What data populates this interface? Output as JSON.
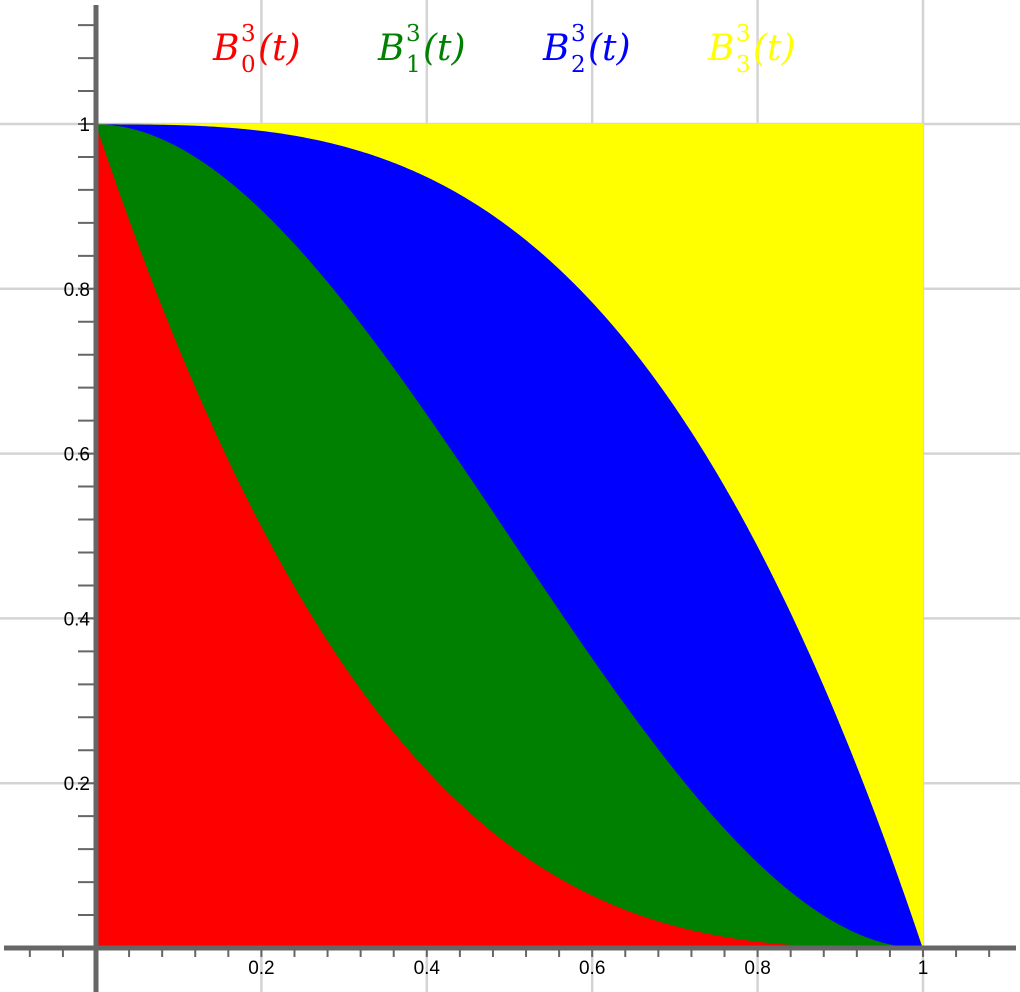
{
  "chart_data": {
    "type": "area",
    "stacked": true,
    "title": "",
    "xlabel": "",
    "ylabel": "",
    "xlim": [
      0,
      1
    ],
    "ylim": [
      0,
      1
    ],
    "grid": true,
    "legend_position": "top",
    "x_ticks": [
      "0.2",
      "0.4",
      "0.6",
      "0.8",
      "1"
    ],
    "y_ticks": [
      "0.2",
      "0.4",
      "0.6",
      "0.8",
      "1"
    ],
    "x": [
      0,
      0.1,
      0.2,
      0.3,
      0.4,
      0.5,
      0.6,
      0.7,
      0.8,
      0.9,
      1
    ],
    "series": [
      {
        "legend": {
          "base": "B",
          "sub": "0",
          "sup": "3",
          "arg": "(t)"
        },
        "color": "#ff0000",
        "formula": "(1-t)^3",
        "values": [
          1,
          0.729,
          0.512,
          0.343,
          0.216,
          0.125,
          0.064,
          0.027,
          0.008,
          0.001,
          0
        ]
      },
      {
        "legend": {
          "base": "B",
          "sub": "1",
          "sup": "3",
          "arg": "(t)"
        },
        "color": "#008000",
        "formula": "3t(1-t)^2",
        "values": [
          0,
          0.243,
          0.384,
          0.441,
          0.432,
          0.375,
          0.288,
          0.189,
          0.096,
          0.027,
          0
        ]
      },
      {
        "legend": {
          "base": "B",
          "sub": "2",
          "sup": "3",
          "arg": "(t)"
        },
        "color": "#0000ff",
        "formula": "3t^2(1-t)",
        "values": [
          0,
          0.027,
          0.096,
          0.189,
          0.288,
          0.375,
          0.432,
          0.441,
          0.384,
          0.243,
          0
        ]
      },
      {
        "legend": {
          "base": "B",
          "sub": "3",
          "sup": "3",
          "arg": "(t)"
        },
        "color": "#ffff00",
        "formula": "t^3",
        "values": [
          0,
          0.001,
          0.008,
          0.027,
          0.064,
          0.125,
          0.216,
          0.343,
          0.512,
          0.729,
          1
        ]
      }
    ]
  }
}
